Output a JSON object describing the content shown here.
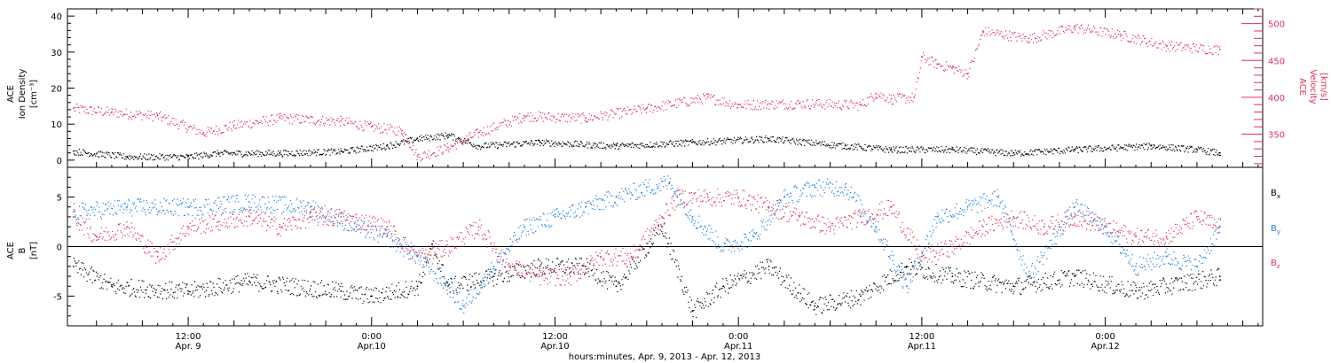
{
  "colors": {
    "black": "#000000",
    "density": "#000000",
    "velocity": "#e0305a",
    "bx": "#000000",
    "by": "#1e7fd8",
    "bz": "#e0305a"
  },
  "xaxis": {
    "title": "hours:minutes, Apr.  9, 2013 - Apr. 12, 2013",
    "ticks": [
      {
        "hour": 12,
        "label1": "12:00",
        "label2": "Apr. 9"
      },
      {
        "hour": 24,
        "label1": "0:00",
        "label2": "Apr.10"
      },
      {
        "hour": 36,
        "label1": "12:00",
        "label2": "Apr.10"
      },
      {
        "hour": 48,
        "label1": "0:00",
        "label2": "Apr.11"
      },
      {
        "hour": 60,
        "label1": "12:00",
        "label2": "Apr.11"
      },
      {
        "hour": 72,
        "label1": "0:00",
        "label2": "Apr.12"
      }
    ]
  },
  "chart_data": [
    {
      "type": "scatter",
      "panel": "top",
      "xlim_hours": [
        4.1,
        82.3
      ],
      "left_axis": {
        "label_lines": [
          "ACE",
          "Ion Density",
          "[cm⁻³]"
        ],
        "ylim": [
          -2,
          42
        ],
        "ticks": [
          0,
          10,
          20,
          30,
          40
        ]
      },
      "right_axis": {
        "label_lines": [
          "ACE",
          "Velocity",
          "[km/s]"
        ],
        "ylim": [
          305,
          520
        ],
        "ticks": [
          350,
          400,
          450,
          500
        ]
      },
      "series": [
        {
          "key": "density",
          "axis": "left",
          "points": [
            [
              4.5,
              2.5
            ],
            [
              8,
              1
            ],
            [
              12,
              1
            ],
            [
              14,
              2
            ],
            [
              18,
              2
            ],
            [
              22,
              2.5
            ],
            [
              25,
              4
            ],
            [
              27,
              6
            ],
            [
              29,
              7
            ],
            [
              31,
              4
            ],
            [
              35,
              5
            ],
            [
              40,
              4
            ],
            [
              45,
              5
            ],
            [
              50,
              6
            ],
            [
              55,
              4
            ],
            [
              58,
              3
            ],
            [
              62,
              3
            ],
            [
              66,
              2
            ],
            [
              70,
              3
            ],
            [
              75,
              4
            ],
            [
              78,
              3
            ],
            [
              79.5,
              2
            ]
          ]
        },
        {
          "key": "velocity",
          "axis": "right",
          "points": [
            [
              4.5,
              385
            ],
            [
              7,
              380
            ],
            [
              10,
              375
            ],
            [
              13,
              352
            ],
            [
              15,
              362
            ],
            [
              18,
              372
            ],
            [
              22,
              368
            ],
            [
              24,
              360
            ],
            [
              26,
              355
            ],
            [
              27,
              320
            ],
            [
              29,
              332
            ],
            [
              31,
              352
            ],
            [
              34,
              375
            ],
            [
              38,
              372
            ],
            [
              42,
              385
            ],
            [
              46,
              400
            ],
            [
              48,
              390
            ],
            [
              52,
              392
            ],
            [
              56,
              390
            ],
            [
              57,
              405
            ],
            [
              58,
              398
            ],
            [
              59.5,
              400
            ],
            [
              60,
              455
            ],
            [
              61,
              445
            ],
            [
              62,
              440
            ],
            [
              63,
              432
            ],
            [
              64,
              490
            ],
            [
              67,
              480
            ],
            [
              70,
              495
            ],
            [
              73,
              485
            ],
            [
              76,
              470
            ],
            [
              79.5,
              465
            ]
          ]
        }
      ]
    },
    {
      "type": "scatter",
      "panel": "bottom",
      "xlim_hours": [
        4.1,
        82.3
      ],
      "left_axis": {
        "label_lines": [
          "ACE",
          "B",
          "[nT]"
        ],
        "ylim": [
          -8,
          8
        ],
        "ticks": [
          -5,
          0,
          5
        ]
      },
      "series": [
        {
          "key": "bx",
          "name": "Bx",
          "points": [
            [
              4.5,
              -2
            ],
            [
              7,
              -4
            ],
            [
              12,
              -4.5
            ],
            [
              16,
              -3.5
            ],
            [
              22,
              -4.5
            ],
            [
              24,
              -5
            ],
            [
              27,
              -4
            ],
            [
              28,
              0
            ],
            [
              29,
              -4
            ],
            [
              32,
              -3
            ],
            [
              35,
              -2
            ],
            [
              38,
              -2
            ],
            [
              40,
              -4
            ],
            [
              43,
              2
            ],
            [
              45,
              -6.5
            ],
            [
              47,
              -4
            ],
            [
              50,
              -2
            ],
            [
              53,
              -6
            ],
            [
              56,
              -5
            ],
            [
              59,
              -2
            ],
            [
              62,
              -3
            ],
            [
              66,
              -4
            ],
            [
              70,
              -3
            ],
            [
              74,
              -4.5
            ],
            [
              79.5,
              -3
            ]
          ]
        },
        {
          "key": "by",
          "name": "By",
          "points": [
            [
              4.5,
              3.5
            ],
            [
              8,
              4
            ],
            [
              12,
              4
            ],
            [
              16,
              4.5
            ],
            [
              20,
              4
            ],
            [
              23,
              2
            ],
            [
              25,
              1
            ],
            [
              27,
              -1
            ],
            [
              29,
              -4
            ],
            [
              30,
              -6
            ],
            [
              32,
              -2
            ],
            [
              34,
              2
            ],
            [
              36,
              3
            ],
            [
              38,
              4
            ],
            [
              40,
              5
            ],
            [
              42,
              6
            ],
            [
              43.5,
              6.5
            ],
            [
              45,
              3
            ],
            [
              47,
              0
            ],
            [
              49,
              1
            ],
            [
              51,
              5
            ],
            [
              53,
              6
            ],
            [
              55,
              6
            ],
            [
              57,
              2
            ],
            [
              59,
              -4
            ],
            [
              61,
              3
            ],
            [
              63,
              4
            ],
            [
              65,
              5
            ],
            [
              67,
              -3
            ],
            [
              70,
              4
            ],
            [
              72,
              2
            ],
            [
              74,
              -2
            ],
            [
              76,
              -1
            ],
            [
              78,
              -2
            ],
            [
              79.5,
              2
            ]
          ]
        },
        {
          "key": "bz",
          "name": "Bz",
          "points": [
            [
              4.5,
              3
            ],
            [
              6,
              1
            ],
            [
              8,
              2
            ],
            [
              10,
              -1
            ],
            [
              12,
              2
            ],
            [
              14,
              2.5
            ],
            [
              16,
              3
            ],
            [
              18,
              2
            ],
            [
              20,
              3
            ],
            [
              22,
              3
            ],
            [
              25,
              2
            ],
            [
              27,
              -1
            ],
            [
              29,
              0
            ],
            [
              31,
              2
            ],
            [
              33,
              -2
            ],
            [
              35,
              -3
            ],
            [
              37,
              -3
            ],
            [
              39,
              -1
            ],
            [
              41,
              -1
            ],
            [
              43,
              3
            ],
            [
              44,
              5
            ],
            [
              46,
              5
            ],
            [
              48,
              5
            ],
            [
              50,
              4
            ],
            [
              52,
              3
            ],
            [
              54,
              2
            ],
            [
              56,
              3
            ],
            [
              58,
              4
            ],
            [
              60,
              -1
            ],
            [
              62,
              0
            ],
            [
              64,
              2
            ],
            [
              66,
              3
            ],
            [
              68,
              2
            ],
            [
              70,
              3
            ],
            [
              72,
              2
            ],
            [
              74,
              1
            ],
            [
              76,
              1
            ],
            [
              78,
              3
            ],
            [
              79.5,
              2
            ]
          ]
        }
      ],
      "legend": {
        "placement": "right",
        "labels": [
          "B",
          "B",
          "B"
        ],
        "subscripts": [
          "x",
          "y",
          "z"
        ]
      }
    }
  ]
}
